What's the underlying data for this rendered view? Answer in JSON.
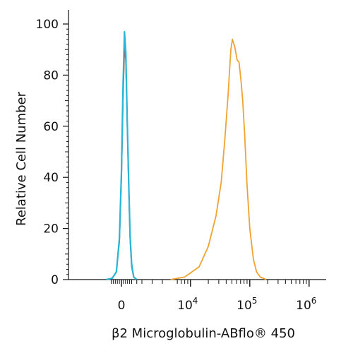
{
  "chart_data": {
    "type": "line",
    "xlabel": "β2 Microglobulin-ABflo® 450",
    "ylabel": "Relative Cell Number",
    "x_scale": "biexponential",
    "ylim": [
      0,
      100
    ],
    "y_ticks": [
      0,
      20,
      40,
      60,
      80,
      100
    ],
    "x_ticks": [
      {
        "value": 0,
        "base": "0",
        "exp": ""
      },
      {
        "value": 10000,
        "base": "10",
        "exp": "4"
      },
      {
        "value": 100000,
        "base": "10",
        "exp": "5"
      },
      {
        "value": 1000000,
        "base": "10",
        "exp": "6"
      }
    ],
    "grid": false,
    "legend": "none",
    "series": [
      {
        "color": "#c0392b",
        "points": [
          [
            -1500,
            0
          ],
          [
            -900,
            0.5
          ],
          [
            -500,
            3
          ],
          [
            -200,
            15
          ],
          [
            0,
            40
          ],
          [
            150,
            70
          ],
          [
            300,
            91
          ],
          [
            430,
            86
          ],
          [
            550,
            64
          ],
          [
            700,
            38
          ],
          [
            850,
            16
          ],
          [
            1000,
            5
          ],
          [
            1200,
            1
          ],
          [
            1500,
            0
          ]
        ]
      },
      {
        "color": "#29b6d8",
        "points": [
          [
            -1500,
            0
          ],
          [
            -900,
            0.5
          ],
          [
            -500,
            3
          ],
          [
            -200,
            16
          ],
          [
            0,
            42
          ],
          [
            150,
            75
          ],
          [
            300,
            97
          ],
          [
            430,
            89
          ],
          [
            550,
            65
          ],
          [
            700,
            39
          ],
          [
            850,
            17
          ],
          [
            1000,
            6
          ],
          [
            1200,
            1
          ],
          [
            1500,
            0
          ]
        ]
      },
      {
        "color": "#f0a330",
        "points": [
          [
            4800,
            0
          ],
          [
            8000,
            1
          ],
          [
            14000,
            5
          ],
          [
            20000,
            13
          ],
          [
            27000,
            25
          ],
          [
            33000,
            38
          ],
          [
            38000,
            55
          ],
          [
            43000,
            72
          ],
          [
            48000,
            90
          ],
          [
            51000,
            94
          ],
          [
            56000,
            91
          ],
          [
            61000,
            86
          ],
          [
            66000,
            85
          ],
          [
            71000,
            78
          ],
          [
            76000,
            70
          ],
          [
            82000,
            57
          ],
          [
            90000,
            37
          ],
          [
            100000,
            20
          ],
          [
            115000,
            8
          ],
          [
            130000,
            3
          ],
          [
            150000,
            1
          ],
          [
            190000,
            0
          ]
        ]
      }
    ]
  }
}
